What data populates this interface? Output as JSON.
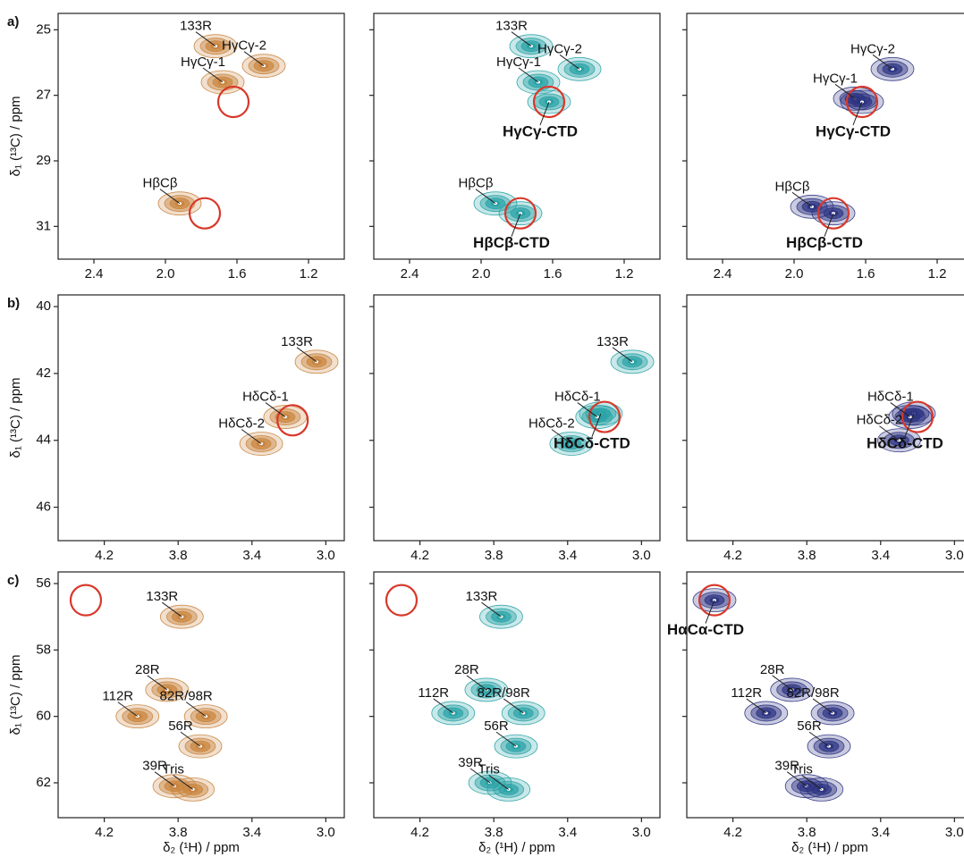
{
  "chart_data": [
    {
      "type": "contour",
      "panel": "a)",
      "ylabel": "δ₁ (¹³C) / ppm",
      "color": "#c9843e",
      "circle_color": "#d8382a",
      "xlim": [
        2.6,
        1.0
      ],
      "ylim": [
        24.5,
        32
      ],
      "xticks": [
        2.4,
        {
          "value": 2,
          "label": "2.0"
        },
        1.6,
        1.2
      ],
      "yticks": [
        25,
        27,
        29,
        31
      ],
      "peaks": [
        {
          "label": "133R",
          "x": 1.72,
          "y": 25.5
        },
        {
          "label": "HγCγ-1",
          "x": 1.68,
          "y": 26.6
        },
        {
          "label": "HγCγ-2",
          "x": 1.45,
          "y": 26.1
        },
        {
          "label": "HβCβ",
          "x": 1.92,
          "y": 30.3
        }
      ],
      "circles": {
        "x": [
          1.62,
          1.78
        ],
        "y": [
          27.2,
          30.6
        ]
      }
    },
    {
      "type": "contour",
      "color": "#2aa3a6",
      "circle_color": "#d8382a",
      "xlim": [
        2.6,
        1.0
      ],
      "ylim": [
        24.5,
        32
      ],
      "xticks": [
        2.4,
        {
          "value": 2,
          "label": "2.0"
        },
        1.6,
        1.2
      ],
      "yticks": [
        25,
        27,
        29,
        31
      ],
      "peaks": [
        {
          "label": "133R",
          "x": 1.72,
          "y": 25.5
        },
        {
          "label": "HγCγ-1",
          "x": 1.68,
          "y": 26.6
        },
        {
          "label": "HγCγ-2",
          "x": 1.45,
          "y": 26.2
        },
        {
          "label": "HγCγ-CTD",
          "x": 1.62,
          "y": 27.2,
          "bold": true
        },
        {
          "label": "HβCβ",
          "x": 1.92,
          "y": 30.3
        },
        {
          "label": "HβCβ-CTD",
          "x": 1.78,
          "y": 30.6,
          "bold": true
        }
      ],
      "circles": {
        "x": [
          1.62,
          1.78
        ],
        "y": [
          27.2,
          30.6
        ]
      }
    },
    {
      "type": "contour",
      "color": "#2e3482",
      "circle_color": "#d8382a",
      "xlim": [
        2.6,
        1.0
      ],
      "ylim": [
        24.5,
        32
      ],
      "xticks": [
        2.4,
        {
          "value": 2,
          "label": "2.0"
        },
        1.6,
        1.2
      ],
      "yticks": [
        25,
        27,
        29,
        31
      ],
      "peaks": [
        {
          "label": "HγCγ-1",
          "x": 1.66,
          "y": 27.1
        },
        {
          "label": "HγCγ-2",
          "x": 1.45,
          "y": 26.2
        },
        {
          "label": "HγCγ-CTD",
          "x": 1.62,
          "y": 27.2,
          "bold": true
        },
        {
          "label": "HβCβ",
          "x": 1.9,
          "y": 30.4
        },
        {
          "label": "HβCβ-CTD",
          "x": 1.78,
          "y": 30.6,
          "bold": true
        }
      ],
      "circles": {
        "x": [
          1.62,
          1.78
        ],
        "y": [
          27.2,
          30.6
        ]
      }
    },
    {
      "type": "contour",
      "panel": "b)",
      "ylabel": "δ₁ (¹³C) / ppm",
      "color": "#c9843e",
      "circle_color": "#d8382a",
      "xlim": [
        4.45,
        2.9
      ],
      "ylim": [
        39.65,
        47
      ],
      "xticks": [
        4.2,
        3.8,
        3.4,
        {
          "value": 3,
          "label": "3.0"
        }
      ],
      "yticks": [
        40,
        42,
        44,
        46
      ],
      "peaks": [
        {
          "label": "133R",
          "x": 3.05,
          "y": 41.65
        },
        {
          "label": "HδCδ-1",
          "x": 3.22,
          "y": 43.3
        },
        {
          "label": "HδCδ-2",
          "x": 3.35,
          "y": 44.1
        }
      ],
      "circles": {
        "x": [
          3.18
        ],
        "y": [
          43.4
        ]
      }
    },
    {
      "type": "contour",
      "color": "#2aa3a6",
      "circle_color": "#d8382a",
      "xlim": [
        4.45,
        2.9
      ],
      "ylim": [
        39.65,
        47
      ],
      "xticks": [
        4.2,
        3.8,
        3.4,
        {
          "value": 3,
          "label": "3.0"
        }
      ],
      "yticks": [
        40,
        42,
        44,
        46
      ],
      "peaks": [
        {
          "label": "133R",
          "x": 3.05,
          "y": 41.65
        },
        {
          "label": "HδCδ-CTD",
          "x": 3.22,
          "y": 43.2,
          "bold": true
        },
        {
          "label": "HδCδ-1",
          "x": 3.24,
          "y": 43.3
        },
        {
          "label": "HδCδ-2",
          "x": 3.38,
          "y": 44.1
        }
      ],
      "circles": {
        "x": [
          3.2
        ],
        "y": [
          43.3
        ]
      }
    },
    {
      "type": "contour",
      "color": "#2e3482",
      "circle_color": "#d8382a",
      "xlim": [
        4.45,
        2.9
      ],
      "ylim": [
        39.65,
        47
      ],
      "xticks": [
        4.2,
        3.8,
        3.4,
        {
          "value": 3,
          "label": "3.0"
        }
      ],
      "yticks": [
        40,
        42,
        44,
        46
      ],
      "peaks": [
        {
          "label": "HδCδ-CTD",
          "x": 3.22,
          "y": 43.2,
          "bold": true
        },
        {
          "label": "HδCδ-1",
          "x": 3.24,
          "y": 43.3
        },
        {
          "label": "HδCδ-2",
          "x": 3.3,
          "y": 44.0
        }
      ],
      "circles": {
        "x": [
          3.2
        ],
        "y": [
          43.3
        ]
      }
    },
    {
      "type": "contour",
      "panel": "c)",
      "ylabel": "δ₁ (¹³C) / ppm",
      "xlabel": "δ₂ (¹H) / ppm",
      "color": "#c9843e",
      "circle_color": "#d8382a",
      "xlim": [
        4.45,
        2.9
      ],
      "ylim": [
        55.65,
        63.05
      ],
      "xticks": [
        4.2,
        3.8,
        3.4,
        {
          "value": 3,
          "label": "3.0"
        }
      ],
      "yticks": [
        56,
        58,
        60,
        62
      ],
      "peaks": [
        {
          "label": "133R",
          "x": 3.78,
          "y": 57.0
        },
        {
          "label": "28R",
          "x": 3.86,
          "y": 59.2
        },
        {
          "label": "82R/98R",
          "x": 3.65,
          "y": 60.0
        },
        {
          "label": "112R",
          "x": 4.02,
          "y": 60.0
        },
        {
          "label": "56R",
          "x": 3.68,
          "y": 60.9
        },
        {
          "label": "39R",
          "x": 3.82,
          "y": 62.1
        },
        {
          "label": "Tris",
          "x": 3.72,
          "y": 62.2
        }
      ],
      "circles": {
        "x": [
          4.3
        ],
        "y": [
          56.5
        ]
      }
    },
    {
      "type": "contour",
      "xlabel": "δ₂ (¹H) / ppm",
      "color": "#2aa3a6",
      "circle_color": "#d8382a",
      "xlim": [
        4.45,
        2.9
      ],
      "ylim": [
        55.65,
        63.05
      ],
      "xticks": [
        4.2,
        3.8,
        3.4,
        {
          "value": 3,
          "label": "3.0"
        }
      ],
      "yticks": [
        56,
        58,
        60,
        62
      ],
      "peaks": [
        {
          "label": "133R",
          "x": 3.76,
          "y": 57.0
        },
        {
          "label": "28R",
          "x": 3.84,
          "y": 59.2
        },
        {
          "label": "82R/98R",
          "x": 3.64,
          "y": 59.9
        },
        {
          "label": "112R",
          "x": 4.02,
          "y": 59.9
        },
        {
          "label": "56R",
          "x": 3.68,
          "y": 60.9
        },
        {
          "label": "39R",
          "x": 3.82,
          "y": 62.0
        },
        {
          "label": "Tris",
          "x": 3.72,
          "y": 62.2
        }
      ],
      "circles": {
        "x": [
          4.3
        ],
        "y": [
          56.5
        ]
      }
    },
    {
      "type": "contour",
      "xlabel": "δ₂ (¹H) / ppm",
      "color": "#2e3482",
      "circle_color": "#d8382a",
      "xlim": [
        4.45,
        2.9
      ],
      "ylim": [
        55.65,
        63.05
      ],
      "xticks": [
        4.2,
        3.8,
        3.4,
        {
          "value": 3,
          "label": "3.0"
        }
      ],
      "yticks": [
        56,
        58,
        60,
        62
      ],
      "peaks": [
        {
          "label": "HαCα-CTD",
          "x": 4.3,
          "y": 56.5,
          "bold": true
        },
        {
          "label": "28R",
          "x": 3.88,
          "y": 59.2
        },
        {
          "label": "82R/98R",
          "x": 3.66,
          "y": 59.9
        },
        {
          "label": "112R",
          "x": 4.02,
          "y": 59.9
        },
        {
          "label": "56R",
          "x": 3.68,
          "y": 60.9
        },
        {
          "label": "39R",
          "x": 3.8,
          "y": 62.1
        },
        {
          "label": "Tris",
          "x": 3.72,
          "y": 62.2
        }
      ],
      "circles": {
        "x": [
          4.3
        ],
        "y": [
          56.5
        ]
      }
    }
  ]
}
